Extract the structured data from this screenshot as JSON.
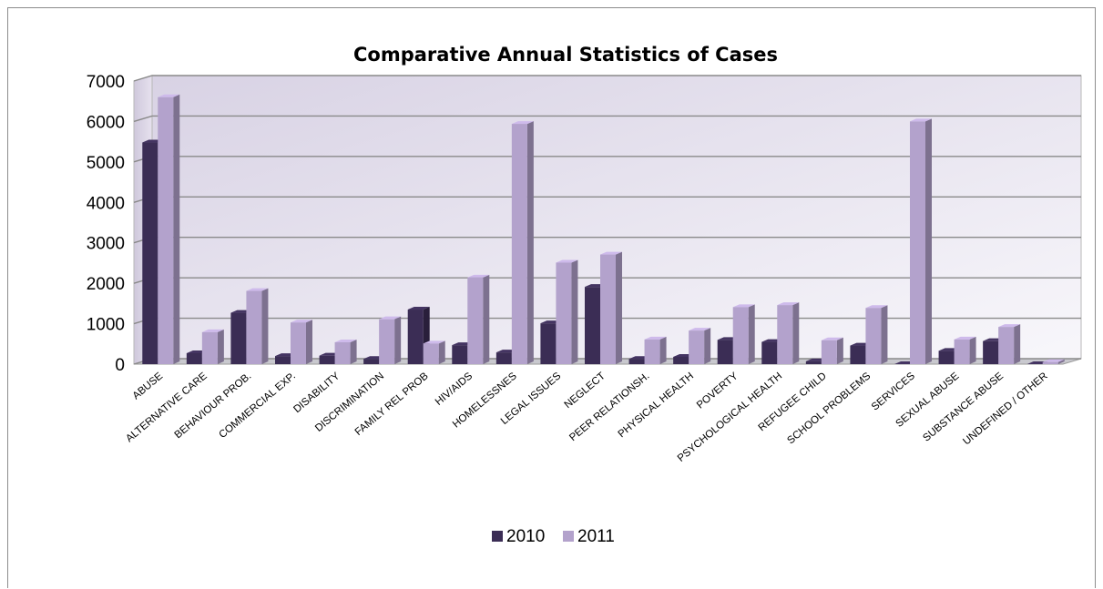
{
  "chart_data": {
    "type": "bar",
    "title": "Comparative Annual Statistics of Cases",
    "xlabel": "",
    "ylabel": "",
    "ylim": [
      0,
      7000
    ],
    "yticks": [
      0,
      1000,
      2000,
      3000,
      4000,
      5000,
      6000,
      7000
    ],
    "grid": true,
    "legend_position": "bottom",
    "categories": [
      "ABUSE",
      "ALTERNATIVE CARE",
      "BEHAVIOUR PROB.",
      "COMMERCIAL EXP.",
      "DISABILITY",
      "DISCRIMINATION",
      "FAMILY REL PROB",
      "HIV/AIDS",
      "HOMELESSNES",
      "LEGAL ISSUES",
      "NEGLECT",
      "PEER RELATIONSH.",
      "PHYSICAL HEALTH",
      "POVERTY",
      "PSYCHOLOGICAL HEALTH",
      "REFUGEE CHILD",
      "SCHOOL PROBLEMS",
      "SERVICES",
      "SEXUAL ABUSE",
      "SUBSTANCE ABUSE",
      "UNDEFINED / OTHER"
    ],
    "series": [
      {
        "name": "2010",
        "color": "#3b2d55",
        "values": [
          5480,
          270,
          1270,
          200,
          210,
          130,
          1350,
          470,
          290,
          1010,
          1910,
          130,
          180,
          600,
          550,
          70,
          460,
          0,
          330,
          570,
          0
        ]
      },
      {
        "name": "2011",
        "color": "#b3a2cc",
        "values": [
          6600,
          790,
          1810,
          1030,
          540,
          1110,
          510,
          2140,
          5940,
          2510,
          2710,
          610,
          830,
          1410,
          1460,
          590,
          1390,
          6000,
          610,
          920,
          50
        ]
      }
    ]
  }
}
